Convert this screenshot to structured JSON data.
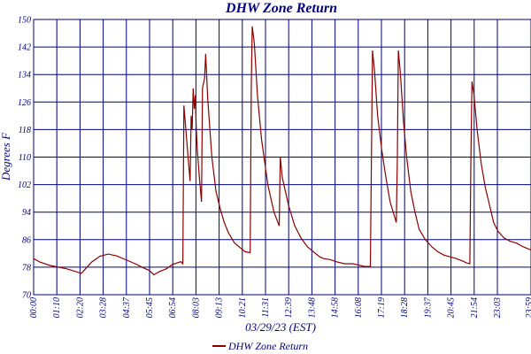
{
  "chart_data": {
    "type": "line",
    "title": "DHW Zone Return",
    "xlabel": "03/29/23 (EST)",
    "ylabel": "Degrees F",
    "ylim": [
      70,
      150
    ],
    "yticks": [
      70,
      78,
      86,
      94,
      102,
      110,
      118,
      126,
      134,
      142,
      150
    ],
    "xlim_hours": [
      0,
      24
    ],
    "xticks": [
      "00:00",
      "01:10",
      "02:20",
      "03:28",
      "04:37",
      "05:45",
      "06:54",
      "08:03",
      "09:13",
      "10:21",
      "11:31",
      "12:39",
      "13:48",
      "14:58",
      "16:08",
      "17:19",
      "18:28",
      "19:37",
      "20:45",
      "21:54",
      "23:03",
      "23:59"
    ],
    "grid": true,
    "legend_position": "bottom-center",
    "series": [
      {
        "name": "DHW Zone Return",
        "color": "#8b0000",
        "points": [
          [
            0.0,
            80.5
          ],
          [
            0.3,
            79.5
          ],
          [
            0.8,
            78.5
          ],
          [
            1.2,
            78.0
          ],
          [
            1.6,
            77.5
          ],
          [
            2.0,
            76.8
          ],
          [
            2.3,
            76.2
          ],
          [
            2.5,
            77.5
          ],
          [
            2.8,
            79.5
          ],
          [
            3.2,
            81.2
          ],
          [
            3.6,
            81.8
          ],
          [
            4.0,
            81.3
          ],
          [
            4.4,
            80.3
          ],
          [
            4.9,
            79.0
          ],
          [
            5.3,
            77.8
          ],
          [
            5.6,
            77.0
          ],
          [
            5.8,
            75.8
          ],
          [
            5.95,
            76.3
          ],
          [
            6.1,
            76.8
          ],
          [
            6.4,
            77.5
          ],
          [
            6.7,
            78.8
          ],
          [
            7.1,
            79.6
          ],
          [
            7.2,
            79.0
          ],
          [
            7.25,
            125.0
          ],
          [
            7.45,
            110.0
          ],
          [
            7.55,
            103.0
          ],
          [
            7.6,
            122.0
          ],
          [
            7.65,
            118.0
          ],
          [
            7.7,
            130.0
          ],
          [
            7.75,
            124.0
          ],
          [
            7.8,
            128.0
          ],
          [
            7.85,
            118.0
          ],
          [
            7.9,
            112.0
          ],
          [
            8.0,
            104.0
          ],
          [
            8.1,
            97.0
          ],
          [
            8.15,
            130.0
          ],
          [
            8.25,
            133.0
          ],
          [
            8.3,
            140.0
          ],
          [
            8.4,
            127.0
          ],
          [
            8.6,
            110.0
          ],
          [
            8.8,
            100.0
          ],
          [
            9.0,
            95.0
          ],
          [
            9.2,
            91.0
          ],
          [
            9.4,
            88.0
          ],
          [
            9.7,
            85.0
          ],
          [
            10.0,
            83.5
          ],
          [
            10.2,
            82.5
          ],
          [
            10.45,
            82.2
          ],
          [
            10.5,
            130.0
          ],
          [
            10.55,
            148.0
          ],
          [
            10.65,
            143.0
          ],
          [
            10.8,
            128.0
          ],
          [
            11.0,
            115.0
          ],
          [
            11.3,
            102.0
          ],
          [
            11.6,
            94.0
          ],
          [
            11.85,
            90.0
          ],
          [
            11.9,
            110.0
          ],
          [
            12.0,
            104.0
          ],
          [
            12.3,
            96.0
          ],
          [
            12.6,
            90.0
          ],
          [
            12.9,
            86.5
          ],
          [
            13.2,
            84.0
          ],
          [
            13.5,
            82.5
          ],
          [
            13.8,
            81.0
          ],
          [
            14.0,
            80.5
          ],
          [
            14.3,
            80.2
          ],
          [
            14.6,
            79.6
          ],
          [
            15.0,
            79.0
          ],
          [
            15.4,
            79.0
          ],
          [
            15.7,
            78.6
          ],
          [
            15.95,
            78.2
          ],
          [
            16.25,
            78.2
          ],
          [
            16.3,
            110.0
          ],
          [
            16.35,
            141.0
          ],
          [
            16.45,
            135.0
          ],
          [
            16.6,
            122.0
          ],
          [
            16.8,
            112.0
          ],
          [
            17.0,
            104.0
          ],
          [
            17.2,
            97.0
          ],
          [
            17.4,
            93.0
          ],
          [
            17.5,
            91.0
          ],
          [
            17.55,
            110.0
          ],
          [
            17.6,
            141.0
          ],
          [
            17.7,
            134.0
          ],
          [
            17.85,
            120.0
          ],
          [
            18.0,
            110.0
          ],
          [
            18.2,
            100.0
          ],
          [
            18.4,
            94.0
          ],
          [
            18.6,
            89.0
          ],
          [
            18.9,
            86.0
          ],
          [
            19.2,
            84.0
          ],
          [
            19.5,
            82.5
          ],
          [
            19.8,
            81.5
          ],
          [
            20.1,
            81.0
          ],
          [
            20.4,
            80.5
          ],
          [
            20.7,
            79.8
          ],
          [
            20.9,
            79.2
          ],
          [
            21.05,
            79.0
          ],
          [
            21.1,
            110.0
          ],
          [
            21.15,
            132.0
          ],
          [
            21.25,
            128.0
          ],
          [
            21.4,
            118.0
          ],
          [
            21.6,
            108.0
          ],
          [
            21.8,
            101.0
          ],
          [
            22.0,
            96.0
          ],
          [
            22.2,
            91.0
          ],
          [
            22.4,
            88.5
          ],
          [
            22.7,
            86.5
          ],
          [
            23.0,
            85.5
          ],
          [
            23.3,
            85.0
          ],
          [
            23.6,
            84.0
          ],
          [
            24.0,
            83.0
          ]
        ]
      }
    ]
  }
}
